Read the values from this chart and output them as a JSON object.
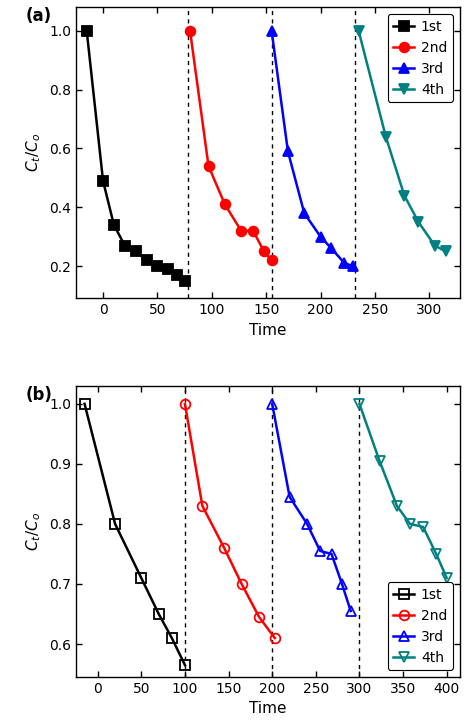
{
  "panel_a": {
    "series": [
      {
        "label": "1st",
        "color": "black",
        "marker": "s",
        "filled": true,
        "x": [
          -15,
          0,
          10,
          20,
          30,
          40,
          50,
          60,
          68,
          75
        ],
        "y": [
          1.0,
          0.49,
          0.34,
          0.27,
          0.25,
          0.22,
          0.2,
          0.19,
          0.17,
          0.15
        ]
      },
      {
        "label": "2nd",
        "color": "red",
        "marker": "o",
        "filled": true,
        "x": [
          80,
          97,
          112,
          127,
          138,
          148,
          155
        ],
        "y": [
          1.0,
          0.54,
          0.41,
          0.32,
          0.32,
          0.25,
          0.22
        ]
      },
      {
        "label": "3rd",
        "color": "blue",
        "marker": "^",
        "filled": true,
        "x": [
          155,
          170,
          185,
          200,
          210,
          222,
          230
        ],
        "y": [
          1.0,
          0.59,
          0.38,
          0.3,
          0.26,
          0.21,
          0.2
        ]
      },
      {
        "label": "4th",
        "color": "#008080",
        "marker": "v",
        "filled": true,
        "x": [
          235,
          260,
          277,
          290,
          305,
          315
        ],
        "y": [
          1.0,
          0.64,
          0.44,
          0.35,
          0.27,
          0.25
        ]
      }
    ],
    "vlines": [
      78,
      155,
      232
    ],
    "xlim": [
      -25,
      328
    ],
    "ylim": [
      0.09,
      1.08
    ],
    "yticks": [
      0.2,
      0.4,
      0.6,
      0.8,
      1.0
    ],
    "xticks": [
      0,
      50,
      100,
      150,
      200,
      250,
      300
    ],
    "xlabel": "Time",
    "ylabel": "$C_t/C_o$",
    "legend_loc": "upper right",
    "legend_bbox": null,
    "panel_label": "(a)"
  },
  "panel_b": {
    "series": [
      {
        "label": "1st",
        "color": "black",
        "marker": "s",
        "filled": false,
        "x": [
          -15,
          20,
          50,
          70,
          85,
          100
        ],
        "y": [
          1.0,
          0.8,
          0.71,
          0.65,
          0.61,
          0.565
        ]
      },
      {
        "label": "2nd",
        "color": "red",
        "marker": "o",
        "filled": false,
        "x": [
          100,
          120,
          145,
          165,
          185,
          203
        ],
        "y": [
          1.0,
          0.83,
          0.76,
          0.7,
          0.645,
          0.61
        ]
      },
      {
        "label": "3rd",
        "color": "blue",
        "marker": "^",
        "filled": false,
        "x": [
          200,
          220,
          240,
          255,
          268,
          280,
          290
        ],
        "y": [
          1.0,
          0.845,
          0.8,
          0.755,
          0.75,
          0.7,
          0.655
        ]
      },
      {
        "label": "4th",
        "color": "#008080",
        "marker": "v",
        "filled": false,
        "x": [
          300,
          323,
          343,
          358,
          373,
          388,
          400
        ],
        "y": [
          1.0,
          0.905,
          0.83,
          0.8,
          0.795,
          0.75,
          0.71
        ]
      }
    ],
    "vlines": [
      100,
      200,
      300
    ],
    "xlim": [
      -25,
      415
    ],
    "ylim": [
      0.545,
      1.03
    ],
    "yticks": [
      0.6,
      0.7,
      0.8,
      0.9,
      1.0
    ],
    "xticks": [
      0,
      50,
      100,
      150,
      200,
      250,
      300,
      350,
      400
    ],
    "xlabel": "Time",
    "ylabel": "$C_t/C_o$",
    "legend_loc": "lower right",
    "legend_bbox": null,
    "panel_label": "(b)"
  },
  "markersize": 7,
  "linewidth": 1.8,
  "font_size": 10,
  "tick_font_size": 10,
  "label_font_size": 11,
  "panel_label_fontsize": 12
}
